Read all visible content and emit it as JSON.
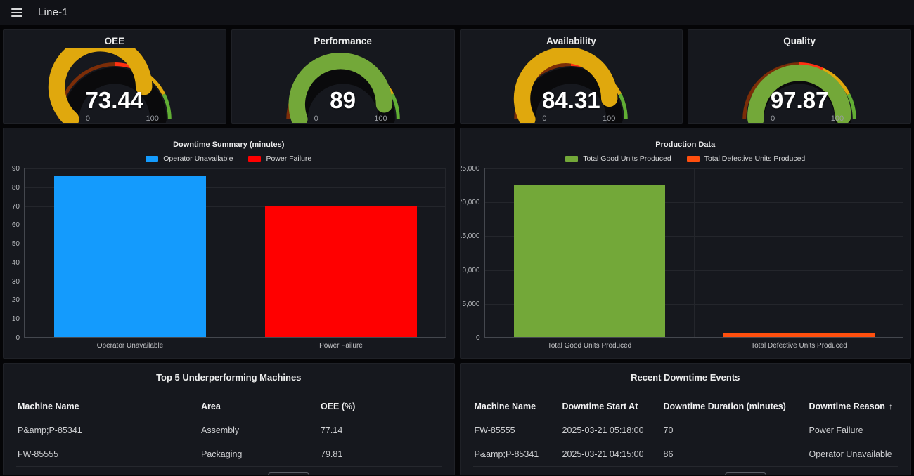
{
  "topbar": {
    "title": "Line-1"
  },
  "gauges": [
    {
      "title": "OEE",
      "value": "73.44",
      "numeric": 73.44,
      "min": "0",
      "max": "100",
      "color": "#E0A80D"
    },
    {
      "title": "Performance",
      "value": "89",
      "numeric": 89,
      "min": "0",
      "max": "100",
      "color": "#73A839"
    },
    {
      "title": "Availability",
      "value": "84.31",
      "numeric": 84.31,
      "min": "0",
      "max": "100",
      "color": "#E0A80D"
    },
    {
      "title": "Quality",
      "value": "97.87",
      "numeric": 97.87,
      "min": "0",
      "max": "100",
      "color": "#73A839"
    }
  ],
  "gauge_thresholds": [
    {
      "from": 0,
      "to": 50,
      "color": "#7B2D08"
    },
    {
      "from": 50,
      "to": 64,
      "color": "#FF3011"
    },
    {
      "from": 64,
      "to": 85,
      "color": "#E0A80D"
    },
    {
      "from": 85,
      "to": 100,
      "color": "#61AE34"
    }
  ],
  "chart_data": [
    {
      "type": "bar",
      "title": "Downtime Summary (minutes)",
      "categories": [
        "Operator Unavailable",
        "Power Failure"
      ],
      "values": [
        86,
        70
      ],
      "bar_colors": [
        "#149BFD",
        "#FF0000"
      ],
      "legend": [
        {
          "label": "Operator Unavailable",
          "color": "#149BFD"
        },
        {
          "label": "Power Failure",
          "color": "#FF0000"
        }
      ],
      "legend_position": "top",
      "grid": true,
      "ylim": [
        0,
        90
      ],
      "yticks": [
        {
          "label": "90",
          "value": 90
        },
        {
          "label": "80",
          "value": 80
        },
        {
          "label": "70",
          "value": 70
        },
        {
          "label": "60",
          "value": 60
        },
        {
          "label": "50",
          "value": 50
        },
        {
          "label": "40",
          "value": 40
        },
        {
          "label": "30",
          "value": 30
        },
        {
          "label": "20",
          "value": 20
        },
        {
          "label": "10",
          "value": 10
        },
        {
          "label": "0",
          "value": 0
        }
      ],
      "xlabel": "",
      "ylabel": ""
    },
    {
      "type": "bar",
      "title": "Production Data",
      "categories": [
        "Total Good Units Produced",
        "Total Defective Units Produced"
      ],
      "values": [
        22500,
        490
      ],
      "bar_colors": [
        "#73A839",
        "#FF4F0E"
      ],
      "legend": [
        {
          "label": "Total Good Units Produced",
          "color": "#73A839"
        },
        {
          "label": "Total Defective Units Produced",
          "color": "#FF4F0E"
        }
      ],
      "legend_position": "top",
      "grid": true,
      "ylim": [
        0,
        25000
      ],
      "yticks": [
        {
          "label": "25,000",
          "value": 25000
        },
        {
          "label": "20,000",
          "value": 20000
        },
        {
          "label": "15,000",
          "value": 15000
        },
        {
          "label": "10,000",
          "value": 10000
        },
        {
          "label": "5,000",
          "value": 5000
        },
        {
          "label": "0",
          "value": 0
        }
      ],
      "xlabel": "",
      "ylabel": ""
    }
  ],
  "tables": [
    {
      "title": "Top 5 Underperforming Machines",
      "headers": [
        "Machine Name",
        "Area",
        "OEE (%)"
      ],
      "rows": [
        [
          "P&amp;P-85341",
          "Assembly",
          "77.14"
        ],
        [
          "FW-85555",
          "Packaging",
          "79.81"
        ]
      ]
    },
    {
      "title": "Recent Downtime Events",
      "headers": [
        "Machine Name",
        "Downtime Start At",
        "Downtime Duration (minutes)",
        "Downtime Reason"
      ],
      "sort": {
        "column": 3,
        "icon": "↑"
      },
      "rows": [
        [
          "FW-85555",
          "2025-03-21 05:18:00",
          "70",
          "Power Failure"
        ],
        [
          "P&amp;P-85341",
          "2025-03-21 04:15:00",
          "86",
          "Operator Unavailable"
        ]
      ]
    }
  ]
}
